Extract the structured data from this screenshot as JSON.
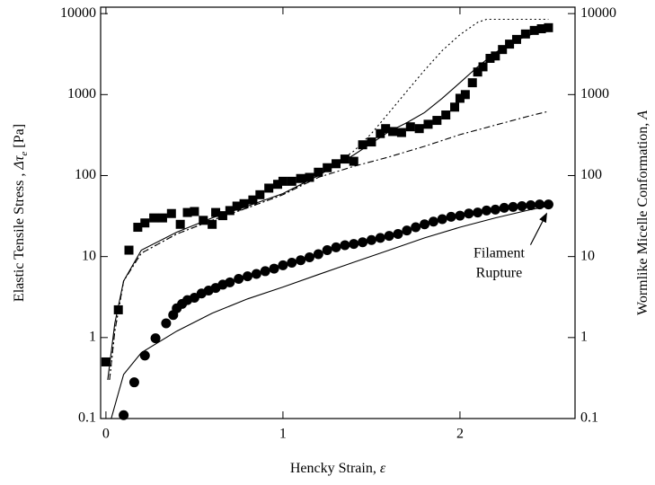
{
  "chart_data": {
    "type": "scatter",
    "xlabel": {
      "text": "Hencky Strain, ",
      "symbol": "ε"
    },
    "ylabel": {
      "text": "Elastic Tensile Stress , ",
      "symbol": "Δτ",
      "sub": "e",
      "unit": " [Pa]"
    },
    "y2label": {
      "text": "Wormlike Micelle Conformation, ",
      "symbol": "A"
    },
    "annotation": {
      "lines": [
        "Filament",
        "Rupture"
      ],
      "target": [
        2.5,
        44
      ]
    },
    "xlim": [
      -0.03,
      2.65
    ],
    "xticks": [
      0,
      1,
      2
    ],
    "ylim": [
      0.1,
      12000
    ],
    "yticks": [
      0.1,
      1,
      10,
      100,
      1000,
      10000
    ],
    "log_y": true,
    "y2lim": [
      0.1,
      12000
    ],
    "y2ticks": [
      0.1,
      1,
      10,
      100,
      1000,
      10000
    ],
    "series": [
      {
        "mode": "markers",
        "marker": "square",
        "color": "#000000",
        "x": [
          0,
          0.07,
          0.13,
          0.18,
          0.22,
          0.27,
          0.32,
          0.37,
          0.42,
          0.46,
          0.5,
          0.55,
          0.6,
          0.62,
          0.66,
          0.7,
          0.74,
          0.78,
          0.83,
          0.87,
          0.92,
          0.97,
          1.0,
          1.05,
          1.1,
          1.15,
          1.2,
          1.25,
          1.3,
          1.35,
          1.4,
          1.45,
          1.5,
          1.55,
          1.58,
          1.62,
          1.67,
          1.72,
          1.77,
          1.82,
          1.87,
          1.92,
          1.97,
          2.0,
          2.03,
          2.07,
          2.1,
          2.13,
          2.17,
          2.2,
          2.24,
          2.28,
          2.32,
          2.37,
          2.42,
          2.46,
          2.5
        ],
        "values": [
          0.5,
          2.2,
          12,
          23,
          26,
          30,
          30,
          34,
          25,
          35,
          36,
          28,
          25,
          35,
          32,
          37,
          42,
          45,
          50,
          58,
          70,
          78,
          85,
          85,
          92,
          95,
          110,
          125,
          140,
          160,
          150,
          240,
          260,
          330,
          380,
          350,
          340,
          400,
          380,
          430,
          480,
          560,
          700,
          900,
          1000,
          1400,
          1900,
          2200,
          2800,
          3000,
          3600,
          4200,
          4800,
          5600,
          6200,
          6500,
          6700
        ]
      },
      {
        "mode": "markers",
        "marker": "circle",
        "color": "#000000",
        "x": [
          0.1,
          0.16,
          0.22,
          0.28,
          0.34,
          0.38,
          0.4,
          0.43,
          0.46,
          0.5,
          0.54,
          0.58,
          0.62,
          0.66,
          0.7,
          0.75,
          0.8,
          0.85,
          0.9,
          0.95,
          1.0,
          1.05,
          1.1,
          1.15,
          1.2,
          1.25,
          1.3,
          1.35,
          1.4,
          1.45,
          1.5,
          1.55,
          1.6,
          1.65,
          1.7,
          1.75,
          1.8,
          1.85,
          1.9,
          1.95,
          2.0,
          2.05,
          2.1,
          2.15,
          2.2,
          2.25,
          2.3,
          2.35,
          2.4,
          2.45,
          2.5
        ],
        "values": [
          0.11,
          0.28,
          0.6,
          0.98,
          1.5,
          1.9,
          2.3,
          2.6,
          2.9,
          3.1,
          3.5,
          3.8,
          4.1,
          4.5,
          4.8,
          5.3,
          5.7,
          6.1,
          6.6,
          7.1,
          7.8,
          8.4,
          9,
          9.8,
          10.7,
          12,
          13,
          13.8,
          14.3,
          15,
          16,
          17,
          18,
          19,
          21,
          23,
          25,
          27,
          29,
          31,
          32,
          34,
          35,
          37,
          38,
          40,
          41,
          42,
          43,
          44,
          44
        ]
      },
      {
        "mode": "lines",
        "dash": "solid",
        "color": "#000000",
        "x": [
          0.01,
          0.05,
          0.1,
          0.2,
          0.4,
          0.6,
          0.8,
          1.0,
          1.2,
          1.4,
          1.5,
          1.6,
          1.7,
          1.8,
          1.9,
          2.0,
          2.1,
          2.2,
          2.3,
          2.4,
          2.5
        ],
        "values": [
          0.3,
          1.5,
          5,
          12,
          20,
          30,
          42,
          60,
          100,
          180,
          250,
          350,
          450,
          600,
          900,
          1400,
          2200,
          3300,
          4500,
          5500,
          6300
        ]
      },
      {
        "mode": "lines",
        "dash": "dotted",
        "color": "#000000",
        "x": [
          0.02,
          0.05,
          0.1,
          0.2,
          0.4,
          0.6,
          0.8,
          1.0,
          1.2,
          1.4,
          1.5,
          1.6,
          1.7,
          1.8,
          1.9,
          2.0,
          2.1,
          2.15,
          2.5
        ],
        "values": [
          0.3,
          1.2,
          5,
          11,
          19,
          28,
          40,
          58,
          100,
          200,
          330,
          600,
          1100,
          2000,
          3500,
          5500,
          7800,
          8500,
          8500
        ]
      },
      {
        "mode": "lines",
        "dash": "dashdot",
        "color": "#000000",
        "x": [
          0.02,
          0.05,
          0.1,
          0.2,
          0.4,
          0.6,
          0.8,
          1.0,
          1.2,
          1.4,
          1.6,
          1.8,
          2.0,
          2.2,
          2.4,
          2.5
        ],
        "values": [
          0.3,
          1.2,
          5,
          11,
          19,
          28,
          40,
          58,
          95,
          130,
          170,
          230,
          320,
          420,
          550,
          620
        ]
      },
      {
        "mode": "lines",
        "dash": "solid",
        "color": "#000000",
        "x": [
          0.03,
          0.1,
          0.2,
          0.4,
          0.6,
          0.8,
          1.0,
          1.2,
          1.4,
          1.6,
          1.8,
          2.0,
          2.2,
          2.4,
          2.5
        ],
        "values": [
          0.1,
          0.35,
          0.65,
          1.2,
          2,
          3,
          4.2,
          6,
          8.5,
          12,
          17,
          23,
          30,
          38,
          42
        ]
      }
    ]
  }
}
